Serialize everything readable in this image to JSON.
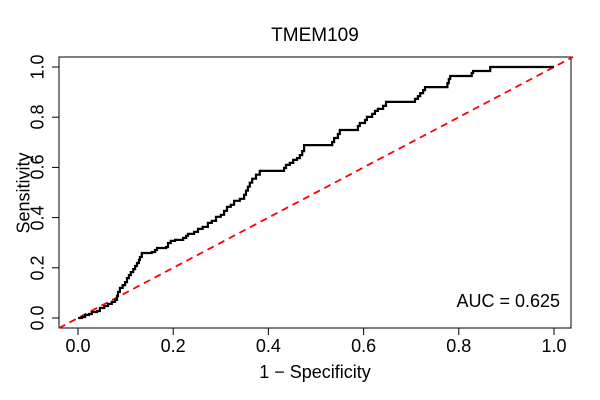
{
  "figure": {
    "background": "#ffffff"
  },
  "chart_data": {
    "type": "line",
    "subtype": "roc-step-curve",
    "title": "TMEM109",
    "xlabel": "1 − Specificity",
    "ylabel": "Sensitivity",
    "annotation": "AUC = 0.625",
    "auc": 0.625,
    "xlim": [
      0.0,
      1.0
    ],
    "ylim": [
      0.0,
      1.0
    ],
    "x_ticks": [
      "0.0",
      "0.2",
      "0.4",
      "0.6",
      "0.8",
      "1.0"
    ],
    "y_ticks": [
      "0.0",
      "0.2",
      "0.4",
      "0.6",
      "0.8",
      "1.0"
    ],
    "grid": false,
    "legend": null,
    "colors": {
      "curve": "#000000",
      "diagonal": "#FF0000",
      "axis": "#000000",
      "text": "#000000"
    },
    "series": [
      {
        "name": "ROC curve",
        "style": "step",
        "color": "#000000",
        "points": [
          [
            0.0,
            0.0
          ],
          [
            0.008,
            0.004
          ],
          [
            0.015,
            0.012
          ],
          [
            0.023,
            0.016
          ],
          [
            0.029,
            0.024
          ],
          [
            0.04,
            0.028
          ],
          [
            0.046,
            0.04
          ],
          [
            0.055,
            0.048
          ],
          [
            0.063,
            0.056
          ],
          [
            0.071,
            0.064
          ],
          [
            0.078,
            0.072
          ],
          [
            0.082,
            0.088
          ],
          [
            0.084,
            0.104
          ],
          [
            0.088,
            0.12
          ],
          [
            0.094,
            0.131
          ],
          [
            0.099,
            0.143
          ],
          [
            0.103,
            0.159
          ],
          [
            0.107,
            0.171
          ],
          [
            0.111,
            0.183
          ],
          [
            0.116,
            0.195
          ],
          [
            0.12,
            0.207
          ],
          [
            0.124,
            0.219
          ],
          [
            0.128,
            0.231
          ],
          [
            0.13,
            0.243
          ],
          [
            0.134,
            0.259
          ],
          [
            0.155,
            0.263
          ],
          [
            0.162,
            0.271
          ],
          [
            0.166,
            0.279
          ],
          [
            0.185,
            0.283
          ],
          [
            0.189,
            0.299
          ],
          [
            0.195,
            0.307
          ],
          [
            0.204,
            0.311
          ],
          [
            0.221,
            0.319
          ],
          [
            0.227,
            0.327
          ],
          [
            0.231,
            0.335
          ],
          [
            0.244,
            0.343
          ],
          [
            0.252,
            0.355
          ],
          [
            0.262,
            0.363
          ],
          [
            0.273,
            0.379
          ],
          [
            0.281,
            0.387
          ],
          [
            0.29,
            0.403
          ],
          [
            0.3,
            0.411
          ],
          [
            0.307,
            0.427
          ],
          [
            0.313,
            0.443
          ],
          [
            0.321,
            0.451
          ],
          [
            0.328,
            0.467
          ],
          [
            0.34,
            0.475
          ],
          [
            0.349,
            0.491
          ],
          [
            0.353,
            0.507
          ],
          [
            0.357,
            0.523
          ],
          [
            0.361,
            0.539
          ],
          [
            0.366,
            0.555
          ],
          [
            0.374,
            0.571
          ],
          [
            0.382,
            0.586
          ],
          [
            0.429,
            0.586
          ],
          [
            0.433,
            0.598
          ],
          [
            0.437,
            0.61
          ],
          [
            0.445,
            0.618
          ],
          [
            0.452,
            0.63
          ],
          [
            0.46,
            0.637
          ],
          [
            0.466,
            0.649
          ],
          [
            0.471,
            0.665
          ],
          [
            0.475,
            0.689
          ],
          [
            0.529,
            0.689
          ],
          [
            0.534,
            0.701
          ],
          [
            0.538,
            0.717
          ],
          [
            0.546,
            0.733
          ],
          [
            0.55,
            0.749
          ],
          [
            0.582,
            0.749
          ],
          [
            0.588,
            0.765
          ],
          [
            0.592,
            0.777
          ],
          [
            0.603,
            0.789
          ],
          [
            0.607,
            0.801
          ],
          [
            0.618,
            0.813
          ],
          [
            0.624,
            0.825
          ],
          [
            0.63,
            0.833
          ],
          [
            0.641,
            0.845
          ],
          [
            0.647,
            0.861
          ],
          [
            0.704,
            0.861
          ],
          [
            0.708,
            0.873
          ],
          [
            0.714,
            0.884
          ],
          [
            0.719,
            0.896
          ],
          [
            0.725,
            0.908
          ],
          [
            0.729,
            0.92
          ],
          [
            0.771,
            0.92
          ],
          [
            0.776,
            0.936
          ],
          [
            0.779,
            0.952
          ],
          [
            0.782,
            0.964
          ],
          [
            0.824,
            0.964
          ],
          [
            0.827,
            0.976
          ],
          [
            0.83,
            0.984
          ],
          [
            0.863,
            0.984
          ],
          [
            0.866,
            1.0
          ],
          [
            1.0,
            1.0
          ]
        ]
      },
      {
        "name": "chance diagonal",
        "style": "dashed",
        "color": "#FF0000",
        "points": [
          [
            -0.04,
            -0.04
          ],
          [
            1.04,
            1.04
          ]
        ]
      }
    ]
  }
}
